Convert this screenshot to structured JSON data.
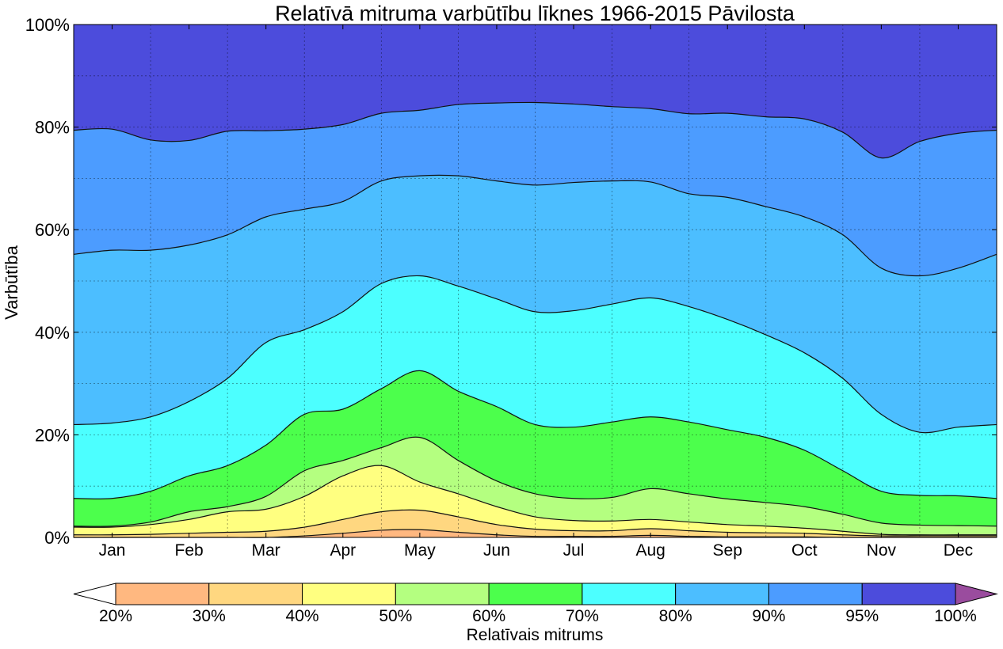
{
  "chart_data": {
    "type": "area",
    "title": "Relatīvā mitruma varbūtību līknes 1966-2015 Pāvilosta",
    "ylabel": "Varbūtība",
    "xlabel": "",
    "ylim": [
      0,
      100
    ],
    "grid": true,
    "x_ticks": [
      "Jan",
      "Feb",
      "Mar",
      "Apr",
      "May",
      "Jun",
      "Jul",
      "Aug",
      "Sep",
      "Oct",
      "Nov",
      "Dec"
    ],
    "y_ticks": [
      "0%",
      "20%",
      "40%",
      "60%",
      "80%",
      "100%"
    ],
    "x_positions": [
      0.5,
      1.5,
      2.5,
      3.5,
      4.5,
      5.5,
      6.5,
      7.5,
      8.5,
      9.5,
      10.5,
      11.5
    ],
    "x": [
      0,
      0.5,
      1,
      1.5,
      2,
      2.5,
      3,
      3.5,
      4,
      4.5,
      5,
      5.5,
      6,
      6.5,
      7,
      7.5,
      8,
      8.5,
      9,
      9.5,
      10,
      10.5,
      11,
      11.5,
      12
    ],
    "series": [
      {
        "values": [
          0,
          0,
          0,
          0,
          0,
          0,
          0.3,
          0.8,
          1.4,
          1.5,
          1,
          0.5,
          0.2,
          0.2,
          0.2,
          0.4,
          0.2,
          0.1,
          0.1,
          0.1,
          0,
          0,
          0,
          0,
          0
        ]
      },
      {
        "values": [
          0.5,
          0.5,
          0.6,
          0.8,
          1,
          1.2,
          2,
          3.5,
          5,
          5.3,
          4,
          2.5,
          1.6,
          1.3,
          1.3,
          1.7,
          1.3,
          1,
          0.9,
          0.8,
          0.5,
          0.3,
          0.3,
          0.3,
          0.3
        ]
      },
      {
        "values": [
          2,
          2,
          2.5,
          3.5,
          5,
          5.5,
          8,
          12,
          14,
          10.8,
          8.5,
          6,
          4,
          3.3,
          3.2,
          3.5,
          3,
          2.5,
          2.2,
          1.8,
          1.2,
          0.6,
          0.5,
          0.5,
          0.5
        ]
      },
      {
        "values": [
          2.2,
          2.2,
          3,
          5,
          6,
          8,
          13,
          15,
          17.5,
          19.5,
          15,
          11,
          8.5,
          7.6,
          7.8,
          9.5,
          8.5,
          7.5,
          6.8,
          6,
          4.5,
          2.8,
          2.4,
          2.3,
          2.2
        ]
      },
      {
        "values": [
          7.6,
          7.6,
          9,
          12,
          14,
          18,
          24,
          25,
          29,
          32.5,
          28.5,
          25.5,
          22,
          21.5,
          22.5,
          23.5,
          22.5,
          21,
          19.5,
          17,
          13,
          9,
          8.2,
          8.1,
          7.6
        ]
      },
      {
        "values": [
          22,
          22.3,
          23.5,
          26.5,
          31,
          38,
          40.5,
          44,
          49.5,
          51,
          49,
          46.5,
          44,
          44.2,
          45.5,
          46.7,
          45,
          42.5,
          39.5,
          36,
          31,
          24,
          20.5,
          21.5,
          22
        ]
      },
      {
        "values": [
          55.2,
          56,
          56,
          57,
          59,
          62.5,
          64,
          65.5,
          69.5,
          70.5,
          70.5,
          69.5,
          68.7,
          69.2,
          69.5,
          69.3,
          67,
          66.3,
          64.5,
          62.5,
          59,
          52.5,
          51,
          52.5,
          55.2
        ]
      },
      {
        "values": [
          79.4,
          79.6,
          77.5,
          77.4,
          79.2,
          79.3,
          79.6,
          80.5,
          82.7,
          83.3,
          84.4,
          84.7,
          84.8,
          84.5,
          84,
          83.6,
          82.6,
          82.7,
          82,
          81.6,
          79,
          74,
          77.2,
          78.8,
          79.4
        ]
      }
    ],
    "colorbar": {
      "label": "Relatīvais mitrums",
      "ticks": [
        "20%",
        "30%",
        "40%",
        "50%",
        "60%",
        "70%",
        "80%",
        "90%",
        "95%",
        "100%"
      ],
      "colors": [
        "#ffb880",
        "#ffd780",
        "#ffff80",
        "#b4ff80",
        "#4cff4c",
        "#4cffff",
        "#4cbeff",
        "#4c9cff",
        "#4c4cdc"
      ],
      "under_color": "#ffffff",
      "over_color": "#9a4c9e"
    },
    "band_colors": [
      "#ffb880",
      "#ffd780",
      "#ffff80",
      "#b4ff80",
      "#4cff4c",
      "#4cffff",
      "#4cbeff",
      "#4c9cff",
      "#4c4cdc"
    ]
  }
}
